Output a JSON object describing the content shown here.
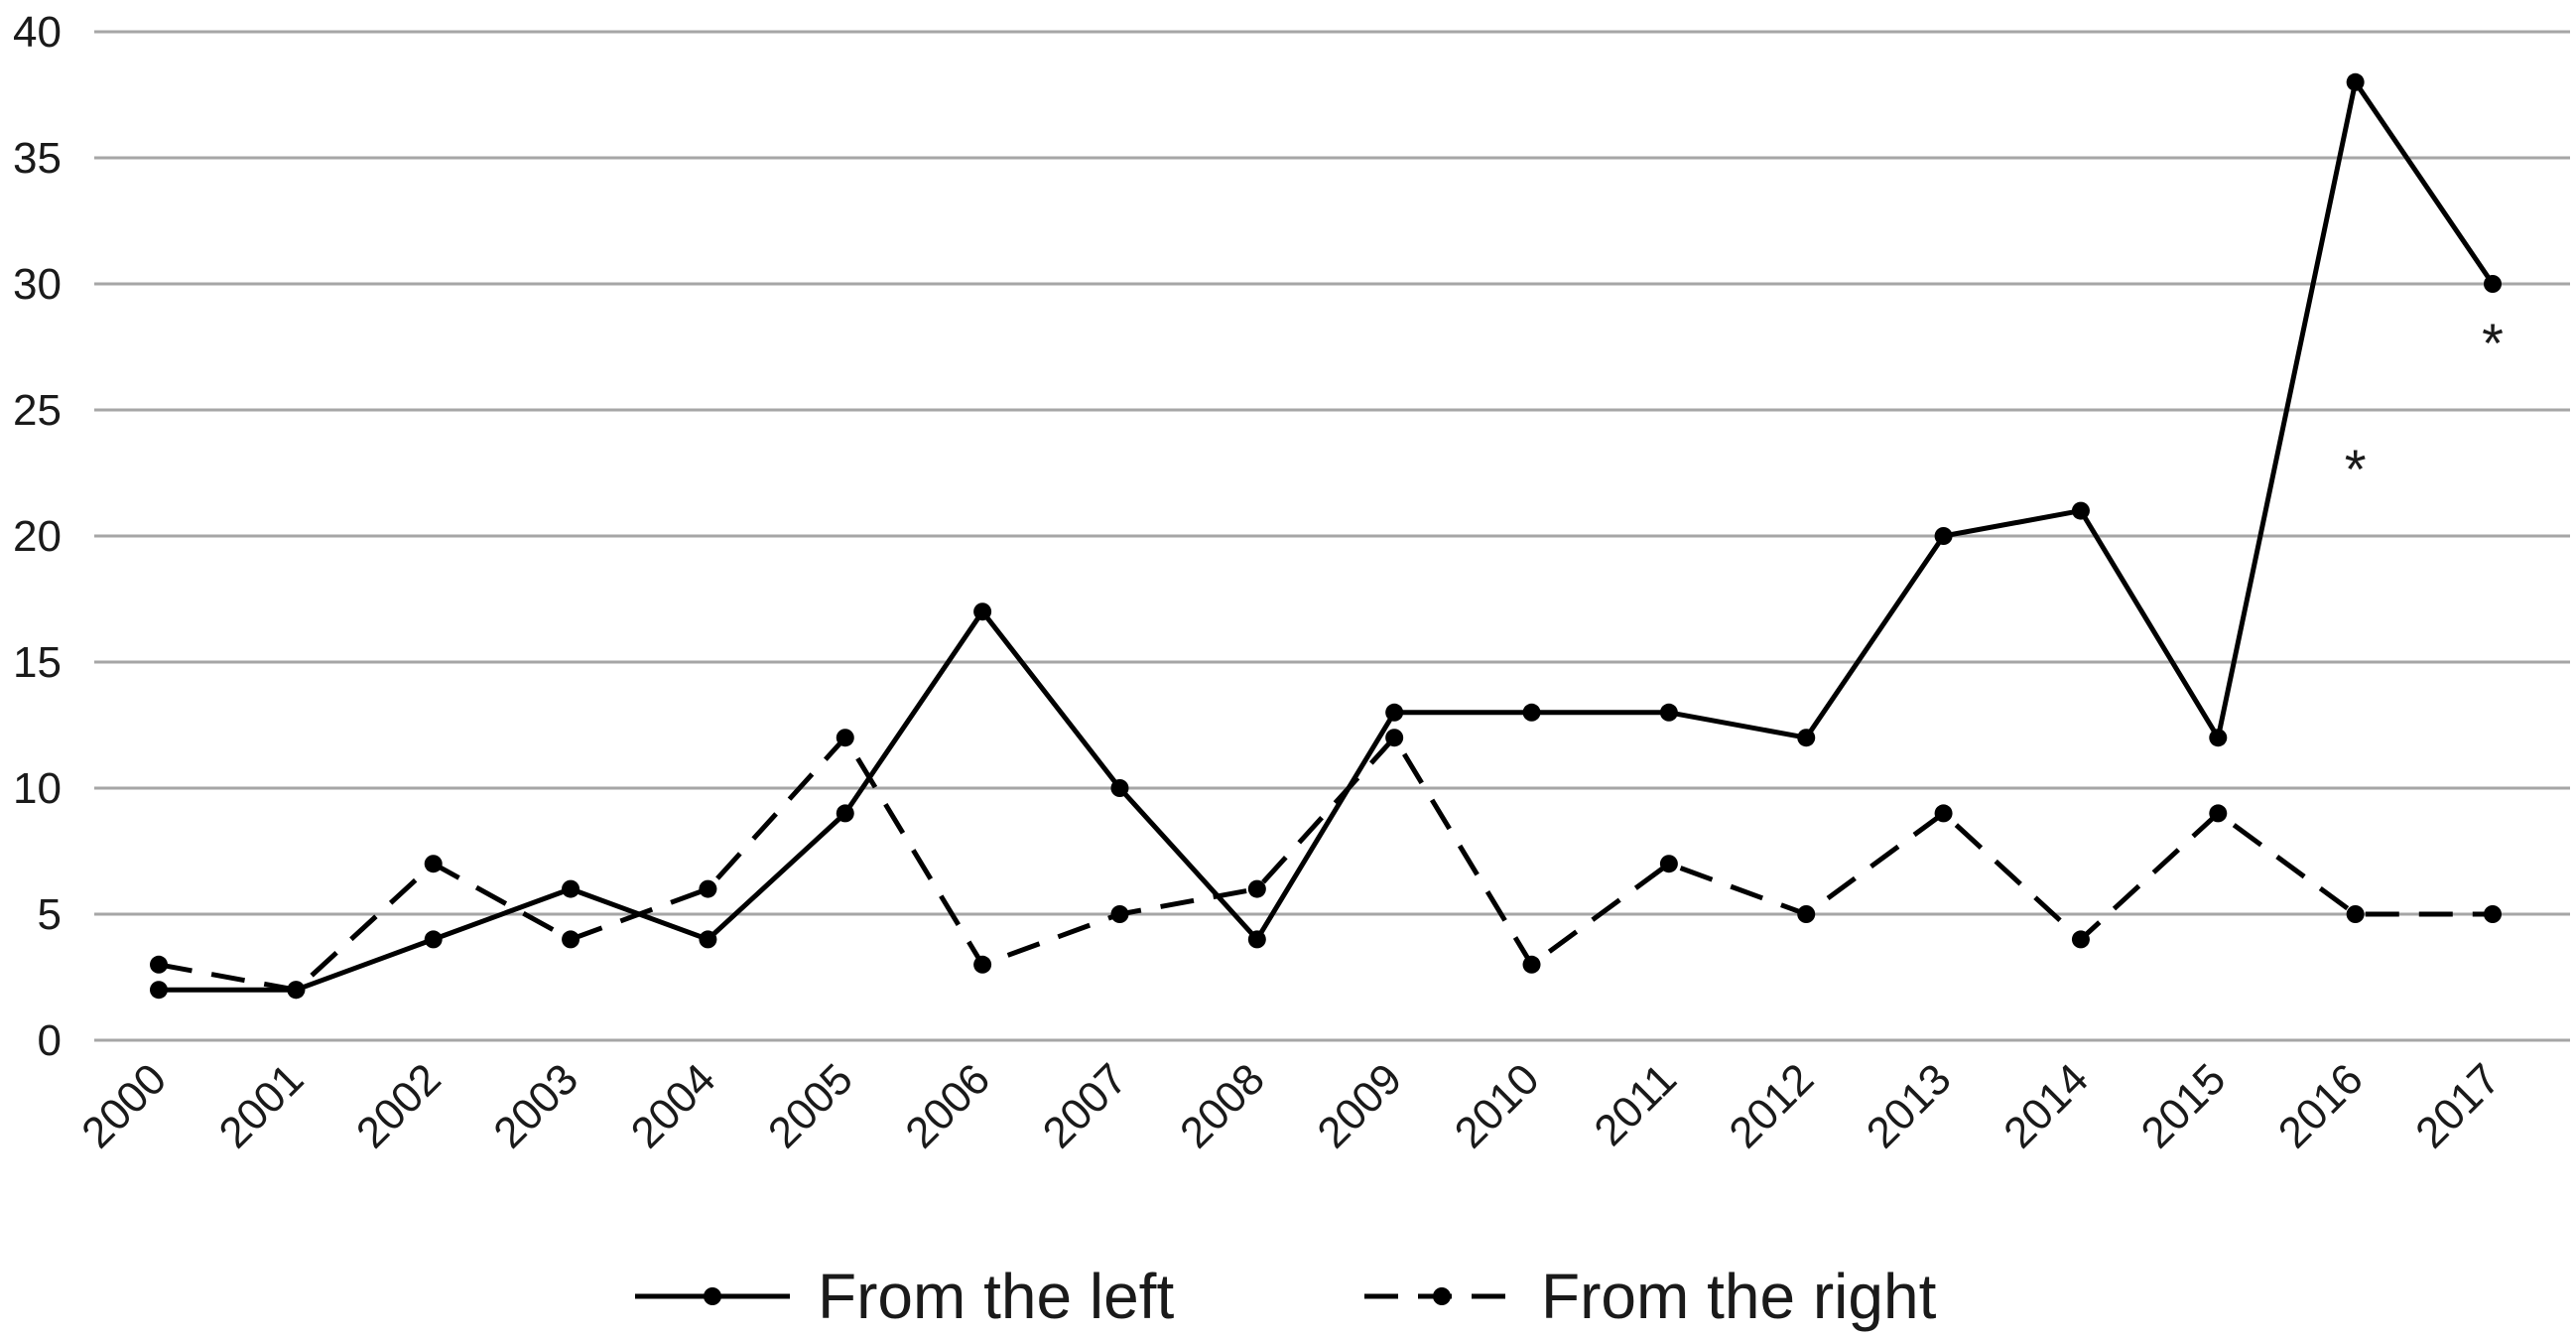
{
  "chart_data": {
    "type": "line",
    "title": "",
    "xlabel": "",
    "ylabel": "",
    "x": [
      "2000",
      "2001",
      "2002",
      "2003",
      "2004",
      "2005",
      "2006",
      "2007",
      "2008",
      "2009",
      "2010",
      "2011",
      "2012",
      "2013",
      "2014",
      "2015",
      "2016",
      "2017"
    ],
    "ylim": [
      0,
      40
    ],
    "yticks": [
      "0",
      "5",
      "10",
      "15",
      "20",
      "25",
      "30",
      "35",
      "40"
    ],
    "grid": true,
    "legend_position": "bottom",
    "series": [
      {
        "name": "From the left",
        "style": "solid",
        "color": "#000000",
        "values": [
          2,
          2,
          4,
          6,
          4,
          9,
          17,
          10,
          4,
          13,
          13,
          13,
          12,
          20,
          21,
          12,
          38,
          30
        ]
      },
      {
        "name": "From the right",
        "style": "dashed",
        "color": "#000000",
        "values": [
          3,
          2,
          7,
          4,
          6,
          12,
          3,
          5,
          6,
          12,
          3,
          7,
          5,
          9,
          4,
          9,
          5,
          5
        ]
      }
    ],
    "annotations": [
      {
        "text": "*",
        "x": "2016",
        "y": 23
      },
      {
        "text": "*",
        "x": "2017",
        "y": 28
      }
    ],
    "colors": {
      "gridline": "#a6a6a6",
      "line": "#000000",
      "text": "#1a1a1a"
    }
  }
}
